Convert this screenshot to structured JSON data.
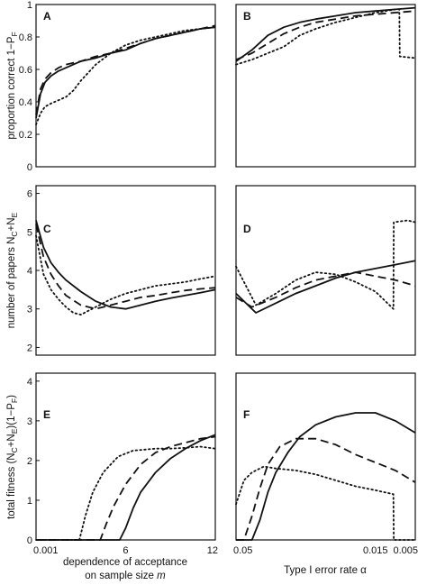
{
  "figure": {
    "ylabels": {
      "row1": {
        "text": "proportion correct 1−P",
        "sub": "F"
      },
      "row2": {
        "text": "number of papers N",
        "sub1": "C",
        "mid": "+N",
        "sub2": "E"
      },
      "row3": {
        "text": "total fitness (N",
        "sub1": "C",
        "mid": "+N",
        "sub2": "E",
        "tail": ")(1−P",
        "sub3": "F",
        "end": ")"
      }
    },
    "xlabels": {
      "left_line1": "dependence of acceptance",
      "left_line2": "on sample size ",
      "left_var": "m",
      "right_text": "Type I error rate ",
      "right_var": "α"
    }
  },
  "chart_data": [
    {
      "type": "line",
      "panel": "A",
      "ylim": [
        0,
        1
      ],
      "xlim": [
        0.001,
        12
      ],
      "yticks": [
        "0",
        "0.2",
        "0.4",
        "0.6",
        "0.8",
        "1"
      ],
      "xticks": [],
      "series": [
        {
          "style": "solid",
          "x": [
            0.001,
            0.3,
            0.6,
            1,
            1.5,
            2,
            2.5,
            3,
            4,
            5,
            6,
            7,
            8,
            9,
            10,
            11,
            12
          ],
          "y": [
            0.3,
            0.45,
            0.52,
            0.56,
            0.59,
            0.61,
            0.63,
            0.65,
            0.67,
            0.7,
            0.72,
            0.76,
            0.79,
            0.81,
            0.83,
            0.85,
            0.86
          ]
        },
        {
          "style": "dashed",
          "x": [
            0.001,
            0.3,
            0.6,
            1,
            1.5,
            2,
            2.5,
            3,
            4,
            5,
            6,
            7,
            8,
            9,
            10,
            11,
            12
          ],
          "y": [
            0.32,
            0.48,
            0.54,
            0.58,
            0.61,
            0.63,
            0.64,
            0.65,
            0.68,
            0.7,
            0.73,
            0.76,
            0.79,
            0.81,
            0.83,
            0.85,
            0.87
          ]
        },
        {
          "style": "dotted",
          "x": [
            0.001,
            0.3,
            0.6,
            1,
            1.5,
            2,
            2.5,
            3,
            4,
            5,
            6,
            7,
            8,
            9,
            10,
            11,
            12
          ],
          "y": [
            0.26,
            0.33,
            0.37,
            0.39,
            0.41,
            0.43,
            0.47,
            0.53,
            0.63,
            0.7,
            0.75,
            0.78,
            0.8,
            0.82,
            0.84,
            0.85,
            0.86
          ]
        }
      ]
    },
    {
      "type": "line",
      "panel": "B",
      "ylim": [
        0,
        1
      ],
      "xlim": [
        0.05,
        0.005
      ],
      "yticks": [],
      "xticks": [],
      "series": [
        {
          "style": "solid",
          "x": [
            0.05,
            0.046,
            0.042,
            0.038,
            0.034,
            0.03,
            0.025,
            0.02,
            0.015,
            0.01,
            0.005
          ],
          "y": [
            0.65,
            0.72,
            0.81,
            0.86,
            0.89,
            0.91,
            0.93,
            0.95,
            0.96,
            0.97,
            0.98
          ]
        },
        {
          "style": "dashed",
          "x": [
            0.05,
            0.046,
            0.042,
            0.038,
            0.034,
            0.03,
            0.025,
            0.02,
            0.015,
            0.01,
            0.005
          ],
          "y": [
            0.66,
            0.7,
            0.76,
            0.82,
            0.86,
            0.89,
            0.91,
            0.93,
            0.94,
            0.95,
            0.96
          ]
        },
        {
          "style": "dotted",
          "x": [
            0.05,
            0.046,
            0.042,
            0.038,
            0.034,
            0.03,
            0.025,
            0.02,
            0.015,
            0.01,
            0.009,
            0.0089,
            0.005
          ],
          "y": [
            0.63,
            0.66,
            0.7,
            0.74,
            0.81,
            0.85,
            0.89,
            0.92,
            0.95,
            0.97,
            0.97,
            0.68,
            0.67
          ]
        }
      ]
    },
    {
      "type": "line",
      "panel": "C",
      "ylim": [
        1.8,
        6.2
      ],
      "xlim": [
        0.001,
        12
      ],
      "yticks": [
        "2",
        "3",
        "4",
        "5",
        "6"
      ],
      "xticks": [],
      "series": [
        {
          "style": "solid",
          "x": [
            0.001,
            0.5,
            1,
            1.5,
            2,
            3,
            4,
            5,
            6,
            7,
            8,
            9,
            10,
            11,
            12
          ],
          "y": [
            5.3,
            4.6,
            4.2,
            3.95,
            3.75,
            3.45,
            3.2,
            3.05,
            3.0,
            3.1,
            3.2,
            3.28,
            3.35,
            3.42,
            3.5
          ]
        },
        {
          "style": "dashed",
          "x": [
            0.001,
            0.5,
            1,
            1.5,
            2,
            3,
            4,
            5,
            6,
            7,
            8,
            9,
            10,
            11,
            12
          ],
          "y": [
            5.2,
            4.35,
            3.9,
            3.6,
            3.35,
            3.1,
            3.0,
            3.1,
            3.2,
            3.3,
            3.35,
            3.42,
            3.48,
            3.52,
            3.55
          ]
        },
        {
          "style": "dotted",
          "x": [
            0.001,
            0.5,
            1,
            1.5,
            2,
            2.5,
            3,
            4,
            5,
            6,
            7,
            8,
            9,
            10,
            11,
            12
          ],
          "y": [
            4.9,
            3.9,
            3.5,
            3.25,
            3.05,
            2.9,
            2.85,
            3.05,
            3.25,
            3.4,
            3.5,
            3.6,
            3.65,
            3.7,
            3.78,
            3.85
          ]
        }
      ]
    },
    {
      "type": "line",
      "panel": "D",
      "ylim": [
        1.8,
        6.2
      ],
      "xlim": [
        0.05,
        0.005
      ],
      "yticks": [],
      "xticks": [],
      "series": [
        {
          "style": "solid",
          "x": [
            0.05,
            0.045,
            0.04,
            0.035,
            0.03,
            0.025,
            0.02,
            0.015,
            0.01,
            0.005
          ],
          "y": [
            3.4,
            2.9,
            3.15,
            3.4,
            3.6,
            3.8,
            3.95,
            4.05,
            4.15,
            4.25
          ]
        },
        {
          "style": "dashed",
          "x": [
            0.05,
            0.046,
            0.04,
            0.035,
            0.03,
            0.025,
            0.02,
            0.015,
            0.01,
            0.005
          ],
          "y": [
            3.3,
            3.05,
            3.3,
            3.55,
            3.75,
            3.85,
            3.95,
            3.85,
            3.75,
            3.6
          ]
        },
        {
          "style": "dotted",
          "x": [
            0.05,
            0.045,
            0.04,
            0.035,
            0.03,
            0.025,
            0.02,
            0.015,
            0.0105,
            0.0104,
            0.007,
            0.005
          ],
          "y": [
            4.1,
            3.1,
            3.4,
            3.75,
            3.95,
            3.9,
            3.7,
            3.45,
            3.0,
            5.25,
            5.3,
            5.25
          ]
        }
      ]
    },
    {
      "type": "line",
      "panel": "E",
      "ylim": [
        0,
        4.2
      ],
      "xlim": [
        0.001,
        12
      ],
      "yticks": [
        "0",
        "1",
        "2",
        "3",
        "4"
      ],
      "xticks": [
        "0.001",
        "6",
        "12"
      ],
      "series": [
        {
          "style": "solid",
          "x": [
            0.001,
            5.6,
            6,
            6.5,
            7,
            8,
            9,
            10,
            11,
            12
          ],
          "y": [
            0,
            0,
            0.3,
            0.8,
            1.2,
            1.7,
            2.05,
            2.3,
            2.5,
            2.65
          ]
        },
        {
          "style": "dashed",
          "x": [
            0.001,
            4.3,
            4.7,
            5.2,
            6,
            7,
            8,
            9,
            10,
            11,
            12
          ],
          "y": [
            0,
            0,
            0.4,
            0.85,
            1.4,
            1.9,
            2.2,
            2.35,
            2.45,
            2.55,
            2.6
          ]
        },
        {
          "style": "dotted",
          "x": [
            0.001,
            2.9,
            3.3,
            3.8,
            4.5,
            5.5,
            6.5,
            8,
            9,
            10,
            11,
            12
          ],
          "y": [
            0,
            0,
            0.6,
            1.2,
            1.7,
            2.1,
            2.25,
            2.3,
            2.3,
            2.32,
            2.35,
            2.3
          ]
        }
      ]
    },
    {
      "type": "line",
      "panel": "F",
      "ylim": [
        0,
        4.2
      ],
      "xlim": [
        0.05,
        0.005
      ],
      "yticks": [],
      "xticks": [
        "0.05",
        "0.015",
        "0.005"
      ],
      "series": [
        {
          "style": "solid",
          "x": [
            0.05,
            0.046,
            0.044,
            0.042,
            0.04,
            0.037,
            0.034,
            0.03,
            0.025,
            0.02,
            0.015,
            0.01,
            0.005
          ],
          "y": [
            0,
            0,
            0.5,
            1.2,
            1.7,
            2.2,
            2.6,
            2.9,
            3.1,
            3.2,
            3.2,
            3.0,
            2.7
          ]
        },
        {
          "style": "dashed",
          "x": [
            0.05,
            0.048,
            0.046,
            0.044,
            0.042,
            0.039,
            0.035,
            0.03,
            0.025,
            0.02,
            0.015,
            0.01,
            0.005
          ],
          "y": [
            0,
            0,
            0.6,
            1.3,
            1.9,
            2.35,
            2.55,
            2.55,
            2.4,
            2.15,
            1.95,
            1.75,
            1.45
          ]
        },
        {
          "style": "dotted",
          "x": [
            0.05,
            0.048,
            0.046,
            0.043,
            0.04,
            0.035,
            0.03,
            0.025,
            0.02,
            0.015,
            0.0105,
            0.0104,
            0.005
          ],
          "y": [
            0.9,
            1.5,
            1.7,
            1.85,
            1.8,
            1.75,
            1.65,
            1.5,
            1.35,
            1.25,
            1.15,
            0,
            0
          ]
        }
      ]
    }
  ]
}
